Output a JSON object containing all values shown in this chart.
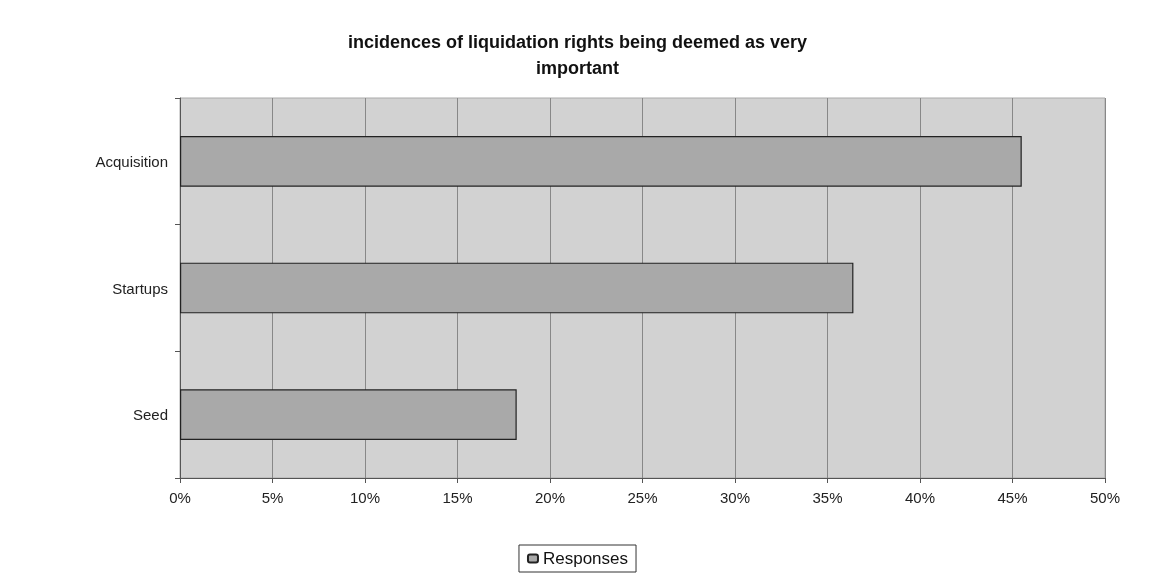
{
  "chart_data": {
    "type": "bar",
    "orientation": "horizontal",
    "title": "incidences of liquidation rights being deemed as very\nimportant",
    "categories": [
      "Acquisition",
      "Startups",
      "Seed"
    ],
    "series": [
      {
        "name": "Responses",
        "color": "#a9a9a9",
        "values": [
          45.5,
          36.4,
          18.2
        ]
      }
    ],
    "xlim": [
      0,
      50
    ],
    "xticks": [
      {
        "value": 0,
        "label": "0%"
      },
      {
        "value": 5,
        "label": "5%"
      },
      {
        "value": 10,
        "label": "10%"
      },
      {
        "value": 15,
        "label": "15%"
      },
      {
        "value": 20,
        "label": "20%"
      },
      {
        "value": 25,
        "label": "25%"
      },
      {
        "value": 30,
        "label": "30%"
      },
      {
        "value": 35,
        "label": "35%"
      },
      {
        "value": 40,
        "label": "40%"
      },
      {
        "value": 45,
        "label": "45%"
      },
      {
        "value": 50,
        "label": "50%"
      }
    ],
    "grid": "x",
    "legend": "bottom"
  }
}
